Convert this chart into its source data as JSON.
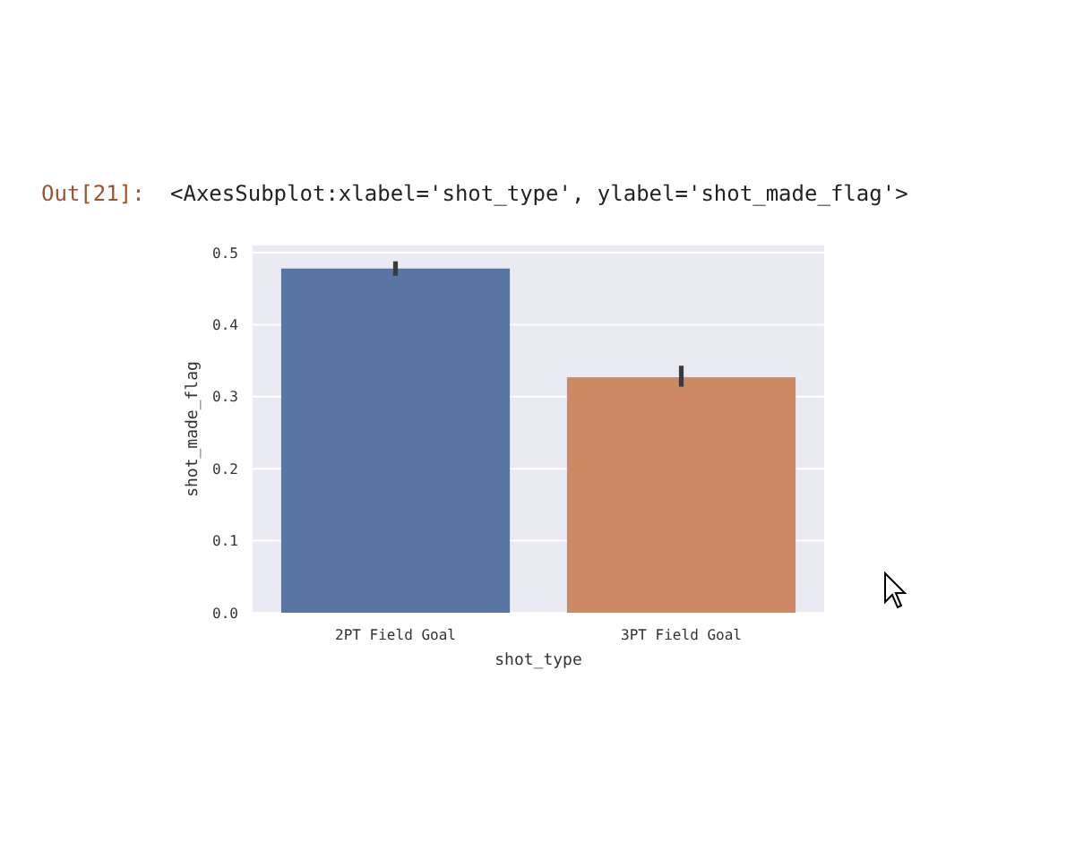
{
  "chart_data": {
    "type": "bar",
    "xlabel": "shot_type",
    "ylabel": "shot_made_flag",
    "categories": [
      "2PT Field Goal",
      "3PT Field Goal"
    ],
    "values": [
      0.478,
      0.327
    ],
    "colors": [
      "#5975a4",
      "#cc8963"
    ],
    "errors": [
      [
        0.468,
        0.488
      ],
      [
        0.314,
        0.343
      ]
    ],
    "ylim": [
      0,
      0.51
    ],
    "yticks": [
      {
        "value": 0,
        "label": "0.0"
      },
      0.1,
      0.2,
      0.3,
      0.4,
      0.5
    ],
    "grid": "y",
    "annotations": [
      "Out[21]:",
      "<AxesSubplot:xlabel='shot_type', ylabel='shot_made_flag'>"
    ]
  }
}
